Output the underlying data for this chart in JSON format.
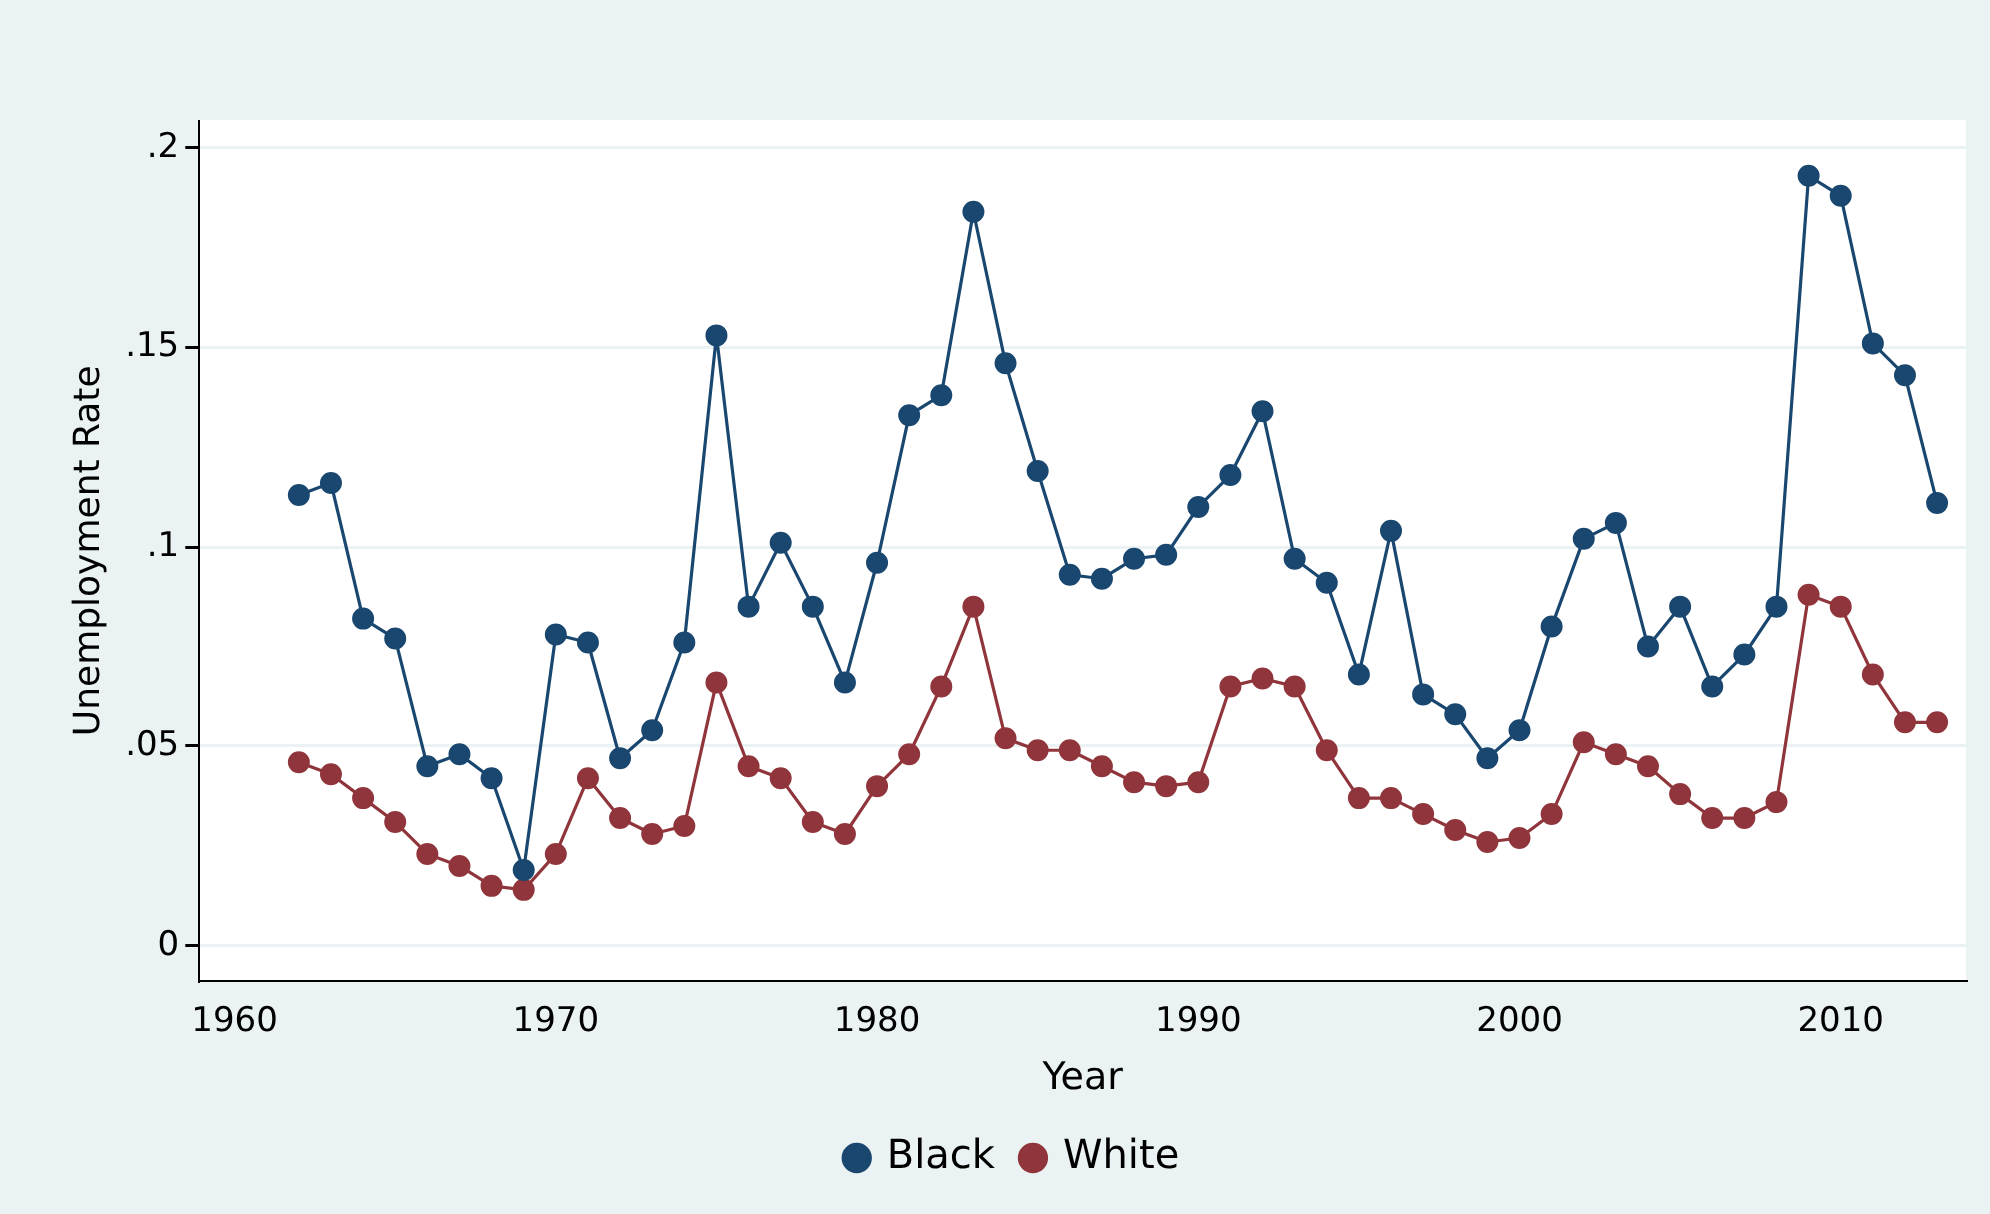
{
  "chart_data": {
    "type": "line",
    "xlabel": "Year",
    "ylabel": "Unemployment Rate",
    "x": [
      1962,
      1963,
      1964,
      1965,
      1966,
      1967,
      1968,
      1969,
      1970,
      1971,
      1972,
      1973,
      1974,
      1975,
      1976,
      1977,
      1978,
      1979,
      1980,
      1981,
      1982,
      1983,
      1984,
      1985,
      1986,
      1987,
      1988,
      1989,
      1990,
      1991,
      1992,
      1993,
      1994,
      1995,
      1996,
      1997,
      1998,
      1999,
      2000,
      2001,
      2002,
      2003,
      2004,
      2005,
      2006,
      2007,
      2008,
      2009,
      2010,
      2011,
      2012,
      2013
    ],
    "series": [
      {
        "name": "Black",
        "color": "#1a476f",
        "values": [
          0.113,
          0.116,
          0.082,
          0.077,
          0.045,
          0.048,
          0.042,
          0.019,
          0.078,
          0.076,
          0.047,
          0.054,
          0.076,
          0.153,
          0.085,
          0.101,
          0.085,
          0.066,
          0.096,
          0.133,
          0.138,
          0.184,
          0.146,
          0.119,
          0.093,
          0.092,
          0.097,
          0.098,
          0.11,
          0.118,
          0.134,
          0.097,
          0.091,
          0.068,
          0.104,
          0.063,
          0.058,
          0.047,
          0.054,
          0.08,
          0.102,
          0.106,
          0.075,
          0.085,
          0.065,
          0.073,
          0.085,
          0.193,
          0.188,
          0.151,
          0.143,
          0.111
        ]
      },
      {
        "name": "White",
        "color": "#90353b",
        "values": [
          0.046,
          0.043,
          0.037,
          0.031,
          0.023,
          0.02,
          0.015,
          0.014,
          0.023,
          0.042,
          0.032,
          0.028,
          0.03,
          0.066,
          0.045,
          0.042,
          0.031,
          0.028,
          0.04,
          0.048,
          0.065,
          0.085,
          0.052,
          0.049,
          0.049,
          0.045,
          0.041,
          0.04,
          0.041,
          0.065,
          0.067,
          0.065,
          0.049,
          0.037,
          0.037,
          0.033,
          0.029,
          0.026,
          0.027,
          0.033,
          0.051,
          0.048,
          0.045,
          0.038,
          0.032,
          0.032,
          0.036,
          0.088,
          0.085,
          0.068,
          0.056,
          0.056
        ]
      }
    ],
    "xlim": [
      1958.9,
      2013.9
    ],
    "xticks": [
      1960,
      1970,
      1980,
      1990,
      2000,
      2010
    ],
    "ylim": [
      -0.009,
      0.207
    ],
    "yticks": [
      {
        "value": 0,
        "label": "0"
      },
      {
        "value": 0.05,
        "label": ".05"
      },
      {
        "value": 0.1,
        "label": ".1"
      },
      {
        "value": 0.15,
        "label": ".15"
      },
      {
        "value": 0.2,
        "label": ".2"
      }
    ],
    "grid": "y",
    "legend": "bottom",
    "marker": "circle",
    "line_style": "solid"
  }
}
